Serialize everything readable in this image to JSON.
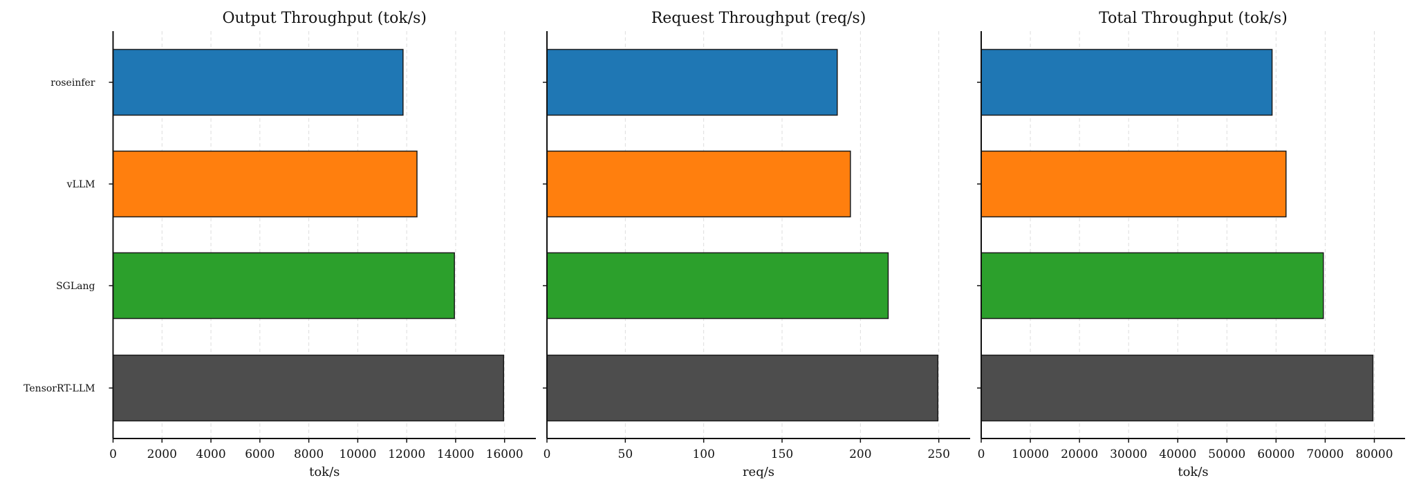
{
  "chart_data": [
    {
      "type": "bar",
      "orientation": "horizontal",
      "title": "Output Throughput (tok/s)",
      "xlabel": "tok/s",
      "ylabel": "",
      "categories": [
        "roseinfer",
        "vLLM",
        "SGLang",
        "TensorRT-LLM"
      ],
      "values": [
        11850,
        12420,
        13950,
        15960
      ],
      "xlim": [
        0,
        17280
      ],
      "xticks": [
        0,
        2000,
        4000,
        6000,
        8000,
        10000,
        12000,
        14000,
        16000
      ],
      "xtick_labels": [
        "0",
        "2000",
        "4000",
        "6000",
        "8000",
        "10000",
        "12000",
        "14000",
        "16000"
      ],
      "grid": "x dashed",
      "show_category_labels": true
    },
    {
      "type": "bar",
      "orientation": "horizontal",
      "title": "Request Throughput (req/s)",
      "xlabel": "req/s",
      "ylabel": "",
      "categories": [
        "roseinfer",
        "vLLM",
        "SGLang",
        "TensorRT-LLM"
      ],
      "values": [
        185.2,
        193.6,
        217.7,
        249.4
      ],
      "xlim": [
        0,
        270
      ],
      "xticks": [
        0,
        50,
        100,
        150,
        200,
        250
      ],
      "xtick_labels": [
        "0",
        "50",
        "100",
        "150",
        "200",
        "250"
      ],
      "grid": "x dashed",
      "show_category_labels": false
    },
    {
      "type": "bar",
      "orientation": "horizontal",
      "title": "Total Throughput (tok/s)",
      "xlabel": "tok/s",
      "ylabel": "",
      "categories": [
        "roseinfer",
        "vLLM",
        "SGLang",
        "TensorRT-LLM"
      ],
      "values": [
        59190,
        62030,
        69620,
        79710
      ],
      "xlim": [
        0,
        86260
      ],
      "xticks": [
        0,
        10000,
        20000,
        30000,
        40000,
        50000,
        60000,
        70000,
        80000
      ],
      "xtick_labels": [
        "0",
        "10000",
        "20000",
        "30000",
        "40000",
        "50000",
        "60000",
        "70000",
        "80000"
      ],
      "grid": "x dashed",
      "show_category_labels": false
    }
  ],
  "colors": [
    "#1f77b4",
    "#ff7f0e",
    "#2ca02c",
    "#4d4d4d"
  ]
}
